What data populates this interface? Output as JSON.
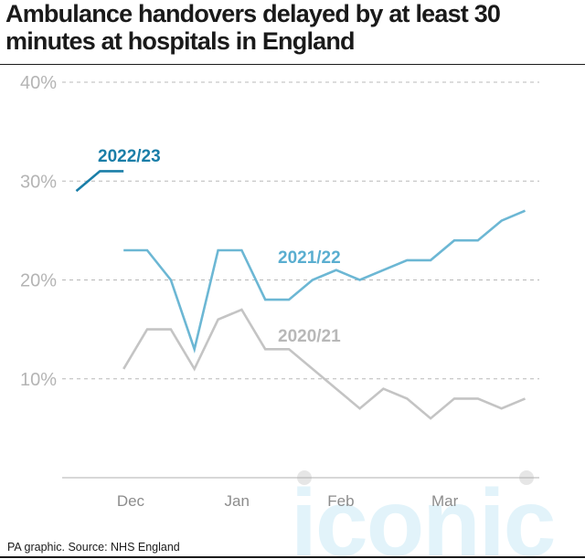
{
  "title": "Ambulance handovers delayed by at least 30 minutes at hospitals in England",
  "source": "PA graphic. Source: NHS England",
  "watermark": "iconic",
  "chart_data": {
    "type": "line",
    "title": "Ambulance handovers delayed by at least 30 minutes at hospitals in England",
    "xlabel": "",
    "ylabel": "",
    "ylim": [
      0,
      40
    ],
    "yticks": [
      10,
      20,
      30,
      40
    ],
    "ytick_labels": [
      "10%",
      "20%",
      "30%",
      "40%"
    ],
    "x_tick_labels": [
      {
        "label": "Dec",
        "x": 2.3
      },
      {
        "label": "Jan",
        "x": 6.8
      },
      {
        "label": "Feb",
        "x": 11.2
      },
      {
        "label": "Mar",
        "x": 15.6
      }
    ],
    "xlim": [
      -0.6,
      19.6
    ],
    "grid": true,
    "series": [
      {
        "name": "2022/23",
        "color": "#1a7ea8",
        "x": [
          0,
          1,
          2
        ],
        "values": [
          29,
          31,
          31
        ]
      },
      {
        "name": "2021/22",
        "color": "#6cb7d4",
        "x": [
          2,
          3,
          4,
          5,
          6,
          7,
          8,
          9,
          10,
          11,
          12,
          13,
          14,
          15,
          16,
          17,
          18,
          19
        ],
        "values": [
          23,
          23,
          20,
          13,
          23,
          23,
          18,
          18,
          20,
          21,
          20,
          21,
          22,
          22,
          24,
          24,
          26,
          27
        ]
      },
      {
        "name": "2020/21",
        "color": "#c4c4c4",
        "x": [
          2,
          3,
          4,
          5,
          6,
          7,
          8,
          9,
          10,
          11,
          12,
          13,
          14,
          15,
          16,
          17,
          18,
          19
        ],
        "values": [
          11,
          15,
          15,
          11,
          16,
          17,
          13,
          13,
          11,
          9,
          7,
          9,
          8,
          6,
          8,
          8,
          7,
          8
        ]
      }
    ]
  }
}
